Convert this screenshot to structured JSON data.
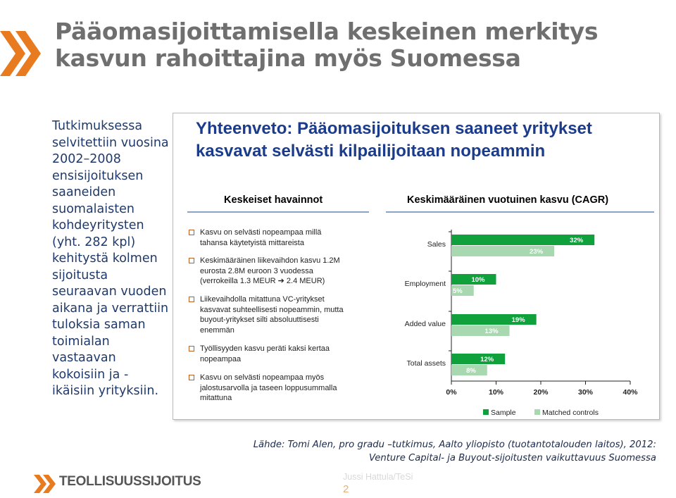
{
  "slide": {
    "title_lines": [
      "Pääomasijoittamisella keskeinen merkitys",
      "kasvun rahoittajina myös Suomessa"
    ],
    "intro_lines": [
      "Tutkimuksessa",
      "selvitettiin vuosina",
      "2002–2008",
      "ensisijoituksen",
      "saaneiden",
      "suomalaisten",
      "kohdeyritysten",
      "(yht. 282 kpl)",
      "kehitystä kolmen",
      "sijoitusta",
      "seuraavan vuoden",
      "aikana ja verrattiin",
      "tuloksia saman",
      "toimialan",
      "vastaavan",
      "kokoisiin ja -",
      "ikäisiin yrityksiin."
    ],
    "source_lines": [
      "Lähde: Tomi Alen, pro gradu –tutkimus, Aalto yliopisto (tuotantotalouden laitos), 2012:",
      "Venture Capital- ja Buyout-sijoitusten vaikuttavuus Suomessa"
    ],
    "footer": {
      "logo_text": "TEOLLISUUSSIJOITUS",
      "author": "Jussi Hattula/TeSi",
      "page": "2"
    }
  },
  "panel": {
    "title_lines": [
      "Yhteenveto: Pääomasijoituksen saaneet yritykset",
      "kasvavat selvästi kilpailijoitaan nopeammin"
    ],
    "findings_heading": "Keskeiset havainnot",
    "chart_heading": "Keskimääräinen vuotuinen kasvu (CAGR)",
    "findings": [
      {
        "lines": [
          "Kasvu on selvästi nopeampaa millä",
          "tahansa käytetyistä mittareista"
        ]
      },
      {
        "lines": [
          "Keskimääräinen liikevaihdon kasvu 1.2M",
          "eurosta 2.8M euroon 3 vuodessa",
          "(verrokeilla 1.3 MEUR ➔ 2.4 MEUR)"
        ]
      },
      {
        "lines": [
          "Liikevaihdolla mitattuna VC-yritykset",
          "kasvavat suhteellisesti nopeammin, mutta",
          "buyout-yritykset silti absoluuttisesti",
          "enemmän"
        ]
      },
      {
        "lines": [
          "Työllisyyden kasvu peräti kaksi kertaa",
          "nopeampaa"
        ]
      },
      {
        "lines": [
          "Kasvu on selvästi nopeampaa myös",
          "jalostusarvolla ja taseen loppusummalla",
          "mitattuna"
        ]
      }
    ]
  },
  "colors": {
    "sample": "#10a03c",
    "control": "#a8d8b0",
    "accent_orange": "#e87a20",
    "panel_title": "#1b3c8c"
  },
  "chart_data": {
    "type": "bar",
    "orientation": "horizontal",
    "categories": [
      "Sales",
      "Employment",
      "Added value",
      "Total assets"
    ],
    "series": [
      {
        "name": "Sample",
        "values": [
          32,
          10,
          19,
          12
        ],
        "labels": [
          "32%",
          "10%",
          "19%",
          "12%"
        ]
      },
      {
        "name": "Matched controls",
        "values": [
          23,
          5,
          13,
          8
        ],
        "labels": [
          "23%",
          "5%",
          "13%",
          "8%"
        ]
      }
    ],
    "x_ticks": [
      "0%",
      "10%",
      "20%",
      "30%",
      "40%"
    ],
    "xlim": [
      0,
      40
    ],
    "legend": "bottom",
    "grid": false
  }
}
